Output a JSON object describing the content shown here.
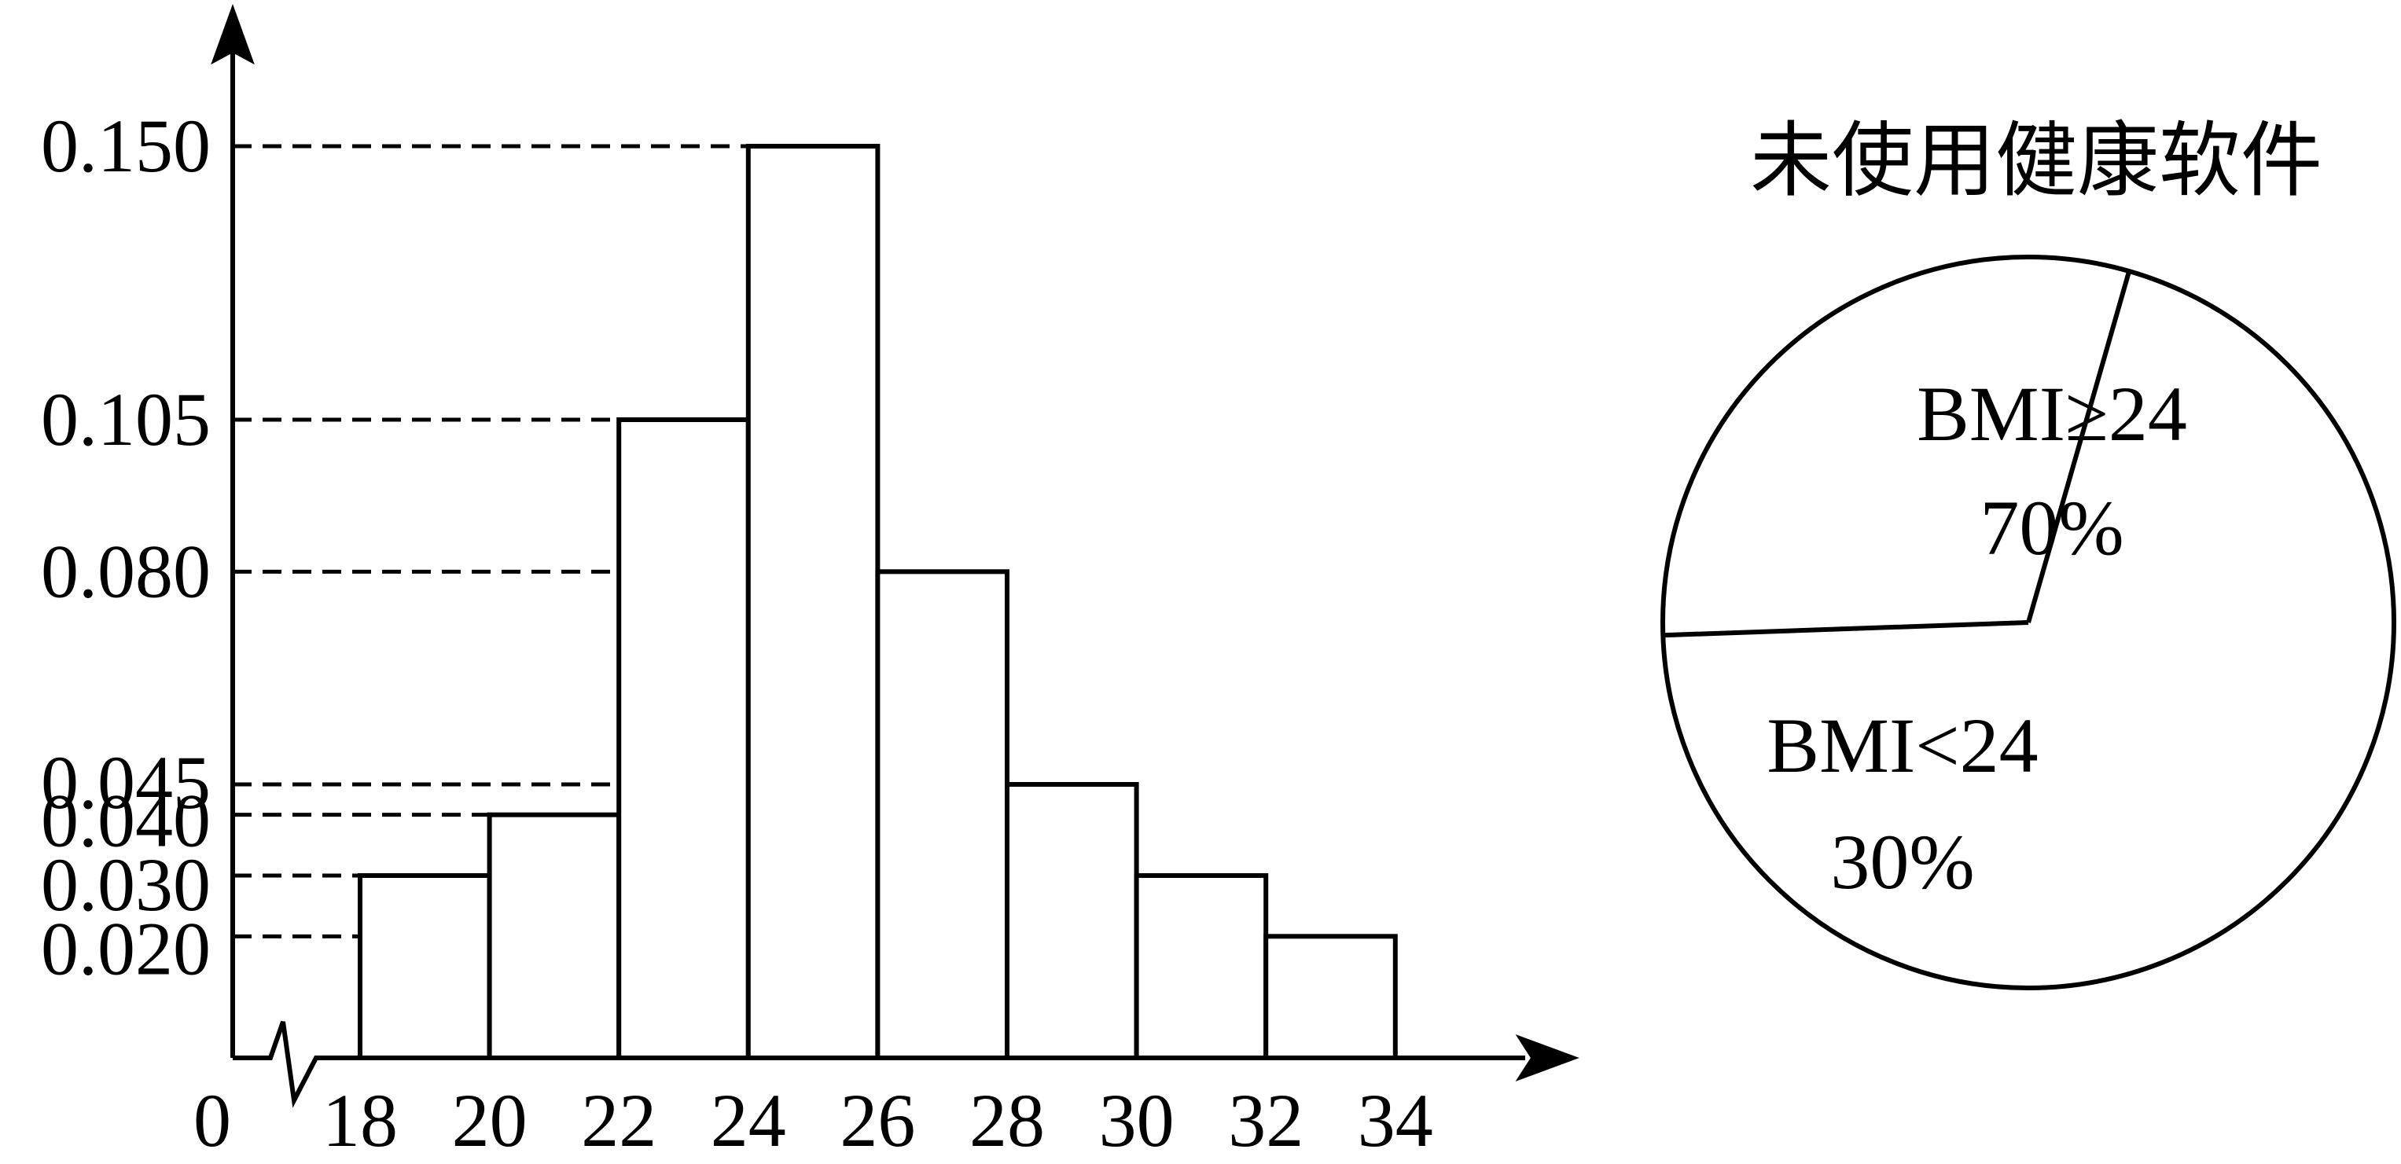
{
  "chart_data": [
    {
      "type": "bar",
      "bins": [
        {
          "from": 18,
          "to": 20,
          "value": 0.03
        },
        {
          "from": 20,
          "to": 22,
          "value": 0.04
        },
        {
          "from": 22,
          "to": 24,
          "value": 0.105
        },
        {
          "from": 24,
          "to": 26,
          "value": 0.15
        },
        {
          "from": 26,
          "to": 28,
          "value": 0.08
        },
        {
          "from": 28,
          "to": 30,
          "value": 0.045
        },
        {
          "from": 30,
          "to": 32,
          "value": 0.03
        },
        {
          "from": 32,
          "to": 34,
          "value": 0.02
        }
      ],
      "x_ticks": [
        "18",
        "20",
        "22",
        "24",
        "26",
        "28",
        "30",
        "32",
        "34"
      ],
      "y_ticks": [
        {
          "value": 0.15,
          "label": "0.150"
        },
        {
          "value": 0.105,
          "label": "0.105"
        },
        {
          "value": 0.08,
          "label": "0.080"
        },
        {
          "value": 0.045,
          "label": "0.045"
        },
        {
          "value": 0.04,
          "label": "0.040"
        },
        {
          "value": 0.03,
          "label": "0.030"
        },
        {
          "value": 0.02,
          "label": "0.020"
        }
      ],
      "origin_label": "0",
      "x_range": [
        18,
        34
      ],
      "y_range": [
        0,
        0.15
      ],
      "axis_break": true
    },
    {
      "type": "pie",
      "title": "未使用健康软件",
      "slices": [
        {
          "label": "BMI≥24",
          "percent_label": "70%",
          "value": 70
        },
        {
          "label": "BMI<24",
          "percent_label": "30%",
          "value": 30
        }
      ]
    }
  ]
}
